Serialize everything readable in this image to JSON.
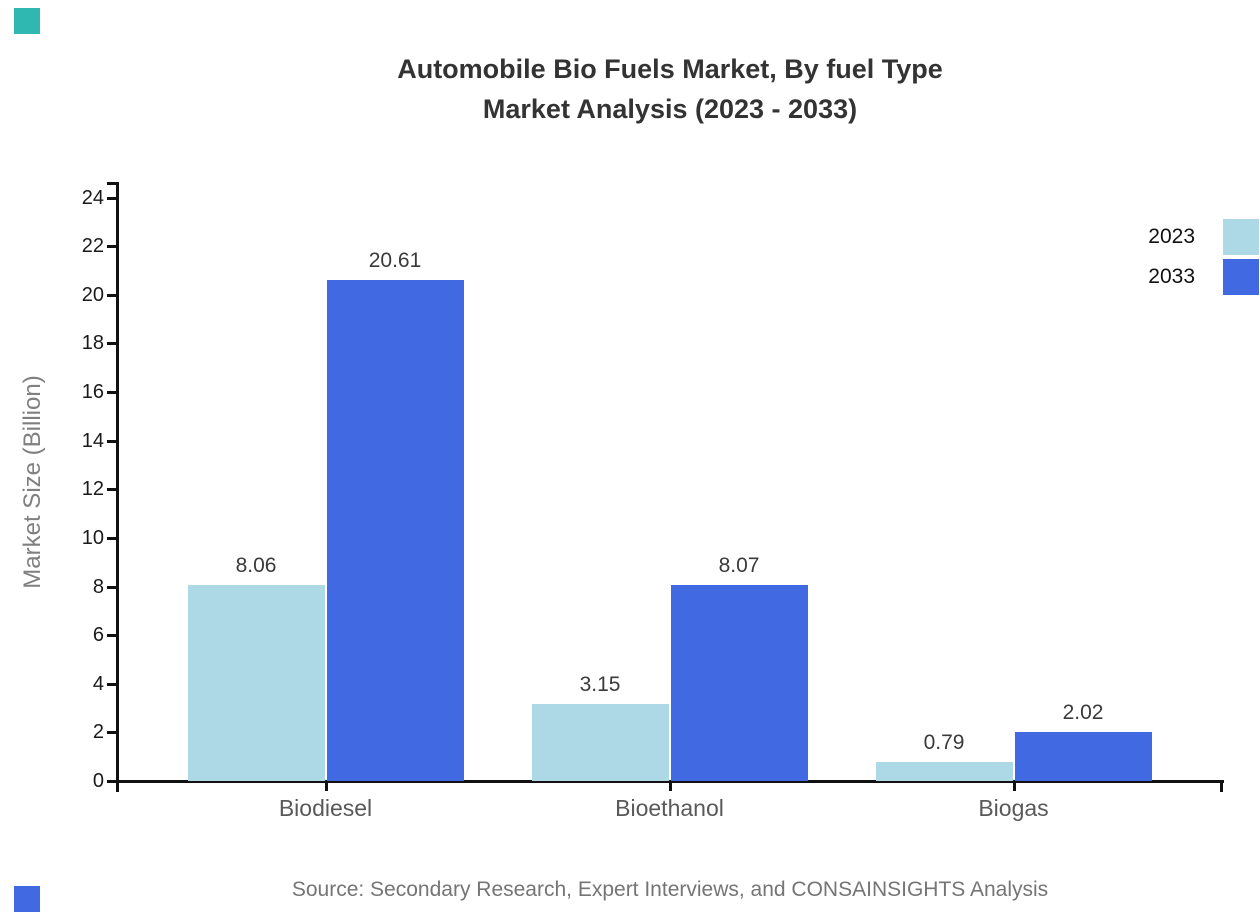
{
  "decorations": {
    "top_left_square_color": "#2fb8b1",
    "bottom_left_square_color": "#4169e1"
  },
  "title": {
    "line1": "Automobile Bio Fuels Market, By fuel Type",
    "line2": "Market Analysis (2023 - 2033)"
  },
  "chart_data": {
    "type": "bar",
    "categories": [
      "Biodiesel",
      "Bioethanol",
      "Biogas"
    ],
    "series": [
      {
        "name": "2023",
        "color": "#ADD8E6",
        "values": [
          8.06,
          3.15,
          0.79
        ]
      },
      {
        "name": "2033",
        "color": "#4169E1",
        "values": [
          20.61,
          8.07,
          2.02
        ]
      }
    ],
    "title": "Automobile Bio Fuels Market, By fuel Type Market Analysis (2023 - 2033)",
    "xlabel": "",
    "ylabel": "Market Size (Billion)",
    "ylim": [
      0,
      24
    ],
    "ytick_step": 2,
    "grid": false,
    "legend_position": "top-right",
    "value_labels": true,
    "axis_color": "#111111"
  },
  "footer": {
    "source": "Source: Secondary Research, Expert Interviews, and CONSAINSIGHTS Analysis"
  }
}
